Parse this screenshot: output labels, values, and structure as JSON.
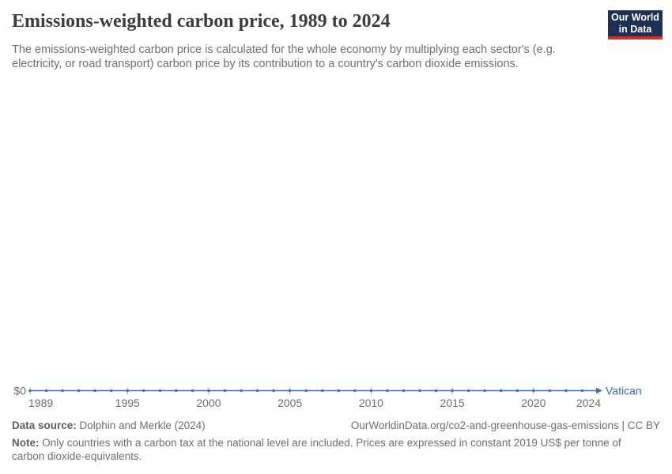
{
  "header": {
    "title": "Emissions-weighted carbon price, 1989 to 2024",
    "subtitle": "The emissions-weighted carbon price is calculated for the whole economy by multiplying each sector's (e.g. electricity, or road transport) carbon price by its contribution to a country's carbon dioxide emissions.",
    "logo": {
      "line1": "Our World",
      "line2": "in Data",
      "bg_color": "#1d3156",
      "bar_color": "#ca3227"
    }
  },
  "chart_data": {
    "type": "line",
    "title": "Emissions-weighted carbon price, 1989 to 2024",
    "x": [
      1989,
      1990,
      1991,
      1992,
      1993,
      1994,
      1995,
      1996,
      1997,
      1998,
      1999,
      2000,
      2001,
      2002,
      2003,
      2004,
      2005,
      2006,
      2007,
      2008,
      2009,
      2010,
      2011,
      2012,
      2013,
      2014,
      2015,
      2016,
      2017,
      2018,
      2019,
      2020,
      2021,
      2022,
      2023,
      2024
    ],
    "series": [
      {
        "name": "Vatican",
        "color": "#4e6fa5",
        "values": [
          0,
          0,
          0,
          0,
          0,
          0,
          0,
          0,
          0,
          0,
          0,
          0,
          0,
          0,
          0,
          0,
          0,
          0,
          0,
          0,
          0,
          0,
          0,
          0,
          0,
          0,
          0,
          0,
          0,
          0,
          0,
          0,
          0,
          0,
          0,
          0
        ]
      }
    ],
    "xlabel": "",
    "ylabel": "",
    "x_ticks": [
      1989,
      1995,
      2000,
      2005,
      2010,
      2015,
      2020,
      2024
    ],
    "y_tick_labels": [
      "$0"
    ],
    "ylim": [
      0,
      0
    ],
    "grid": false,
    "legend_position": "end-of-line",
    "axis_tick_color": "#a8a8a8",
    "axis_label_color": "#6e6e6e",
    "entity_label_color": "#3a67ad"
  },
  "footer": {
    "datasource_label": "Data source:",
    "datasource_value": " Dolphin and Merkle (2024)",
    "link": "OurWorldinData.org/co2-and-greenhouse-gas-emissions | CC BY",
    "note_label": "Note:",
    "note_value": " Only countries with a carbon tax at the national level are included. Prices are expressed in constant 2019 US$ per tonne of carbon dioxide-equivalents."
  }
}
